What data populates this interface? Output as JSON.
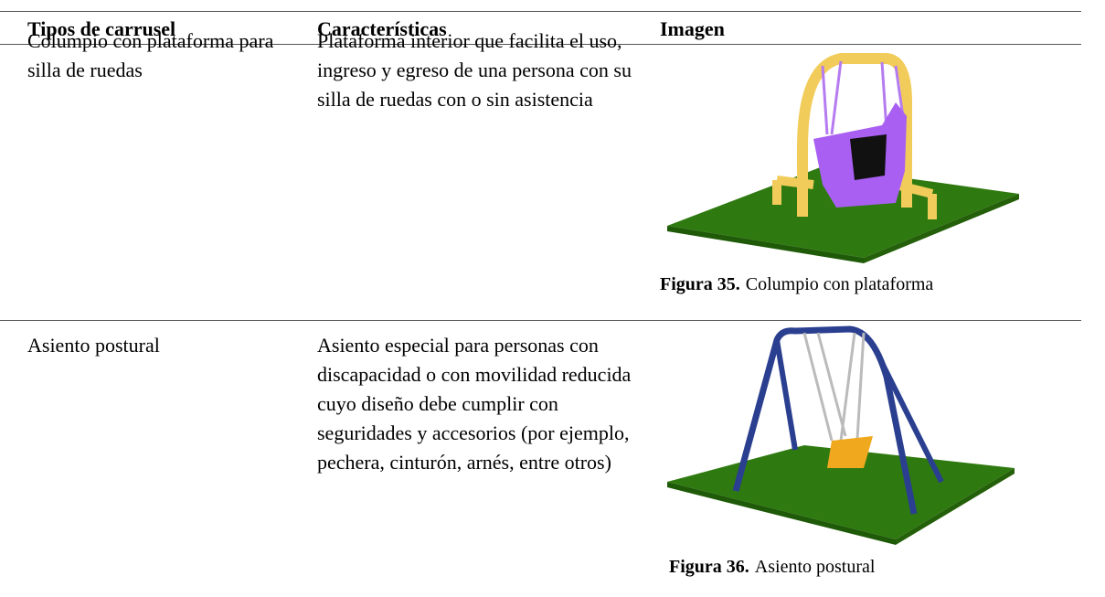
{
  "table": {
    "header": [
      "Tipos de carrusel",
      "Características",
      "Imagen"
    ],
    "rows": [
      {
        "type": "Columpio con plataforma para silla de ruedas",
        "features": "Plataforma interior que facilita el uso, ingreso y egreso de una persona con su silla de ruedas con o sin asistencia",
        "caption": {
          "label": "Figura  35.",
          "text": "Columpio con plataforma"
        }
      },
      {
        "type": "Asiento postural",
        "features": "Asiento especial para personas con discapacidad o con movilidad reducida cuyo diseño debe cumplir con seguridades y accesorios (por ejemplo, pechera, cinturón, arnés, entre otros)",
        "caption": {
          "label": "Figura  36.",
          "text": "Asiento postural"
        }
      }
    ]
  }
}
